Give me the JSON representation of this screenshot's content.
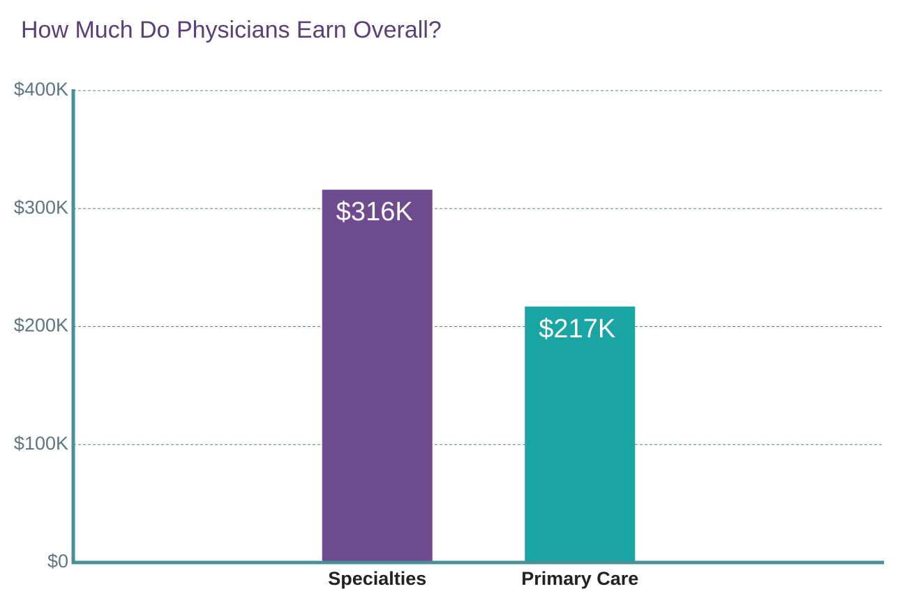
{
  "chart_data": {
    "type": "bar",
    "title": "How Much Do Physicians Earn Overall?",
    "categories": [
      "Specialties",
      "Primary Care"
    ],
    "values": [
      316,
      217
    ],
    "value_labels": [
      "$316K",
      "$217K"
    ],
    "colors": [
      "#6e4a8e",
      "#1aa5a5"
    ],
    "ylim": [
      0,
      400
    ],
    "yticks": [
      {
        "value": 0,
        "label": "$0"
      },
      {
        "value": 100,
        "label": "$100K"
      },
      {
        "value": 200,
        "label": "$200K"
      },
      {
        "value": 300,
        "label": "$300K"
      },
      {
        "value": 400,
        "label": "$400K"
      }
    ],
    "grid": true
  }
}
